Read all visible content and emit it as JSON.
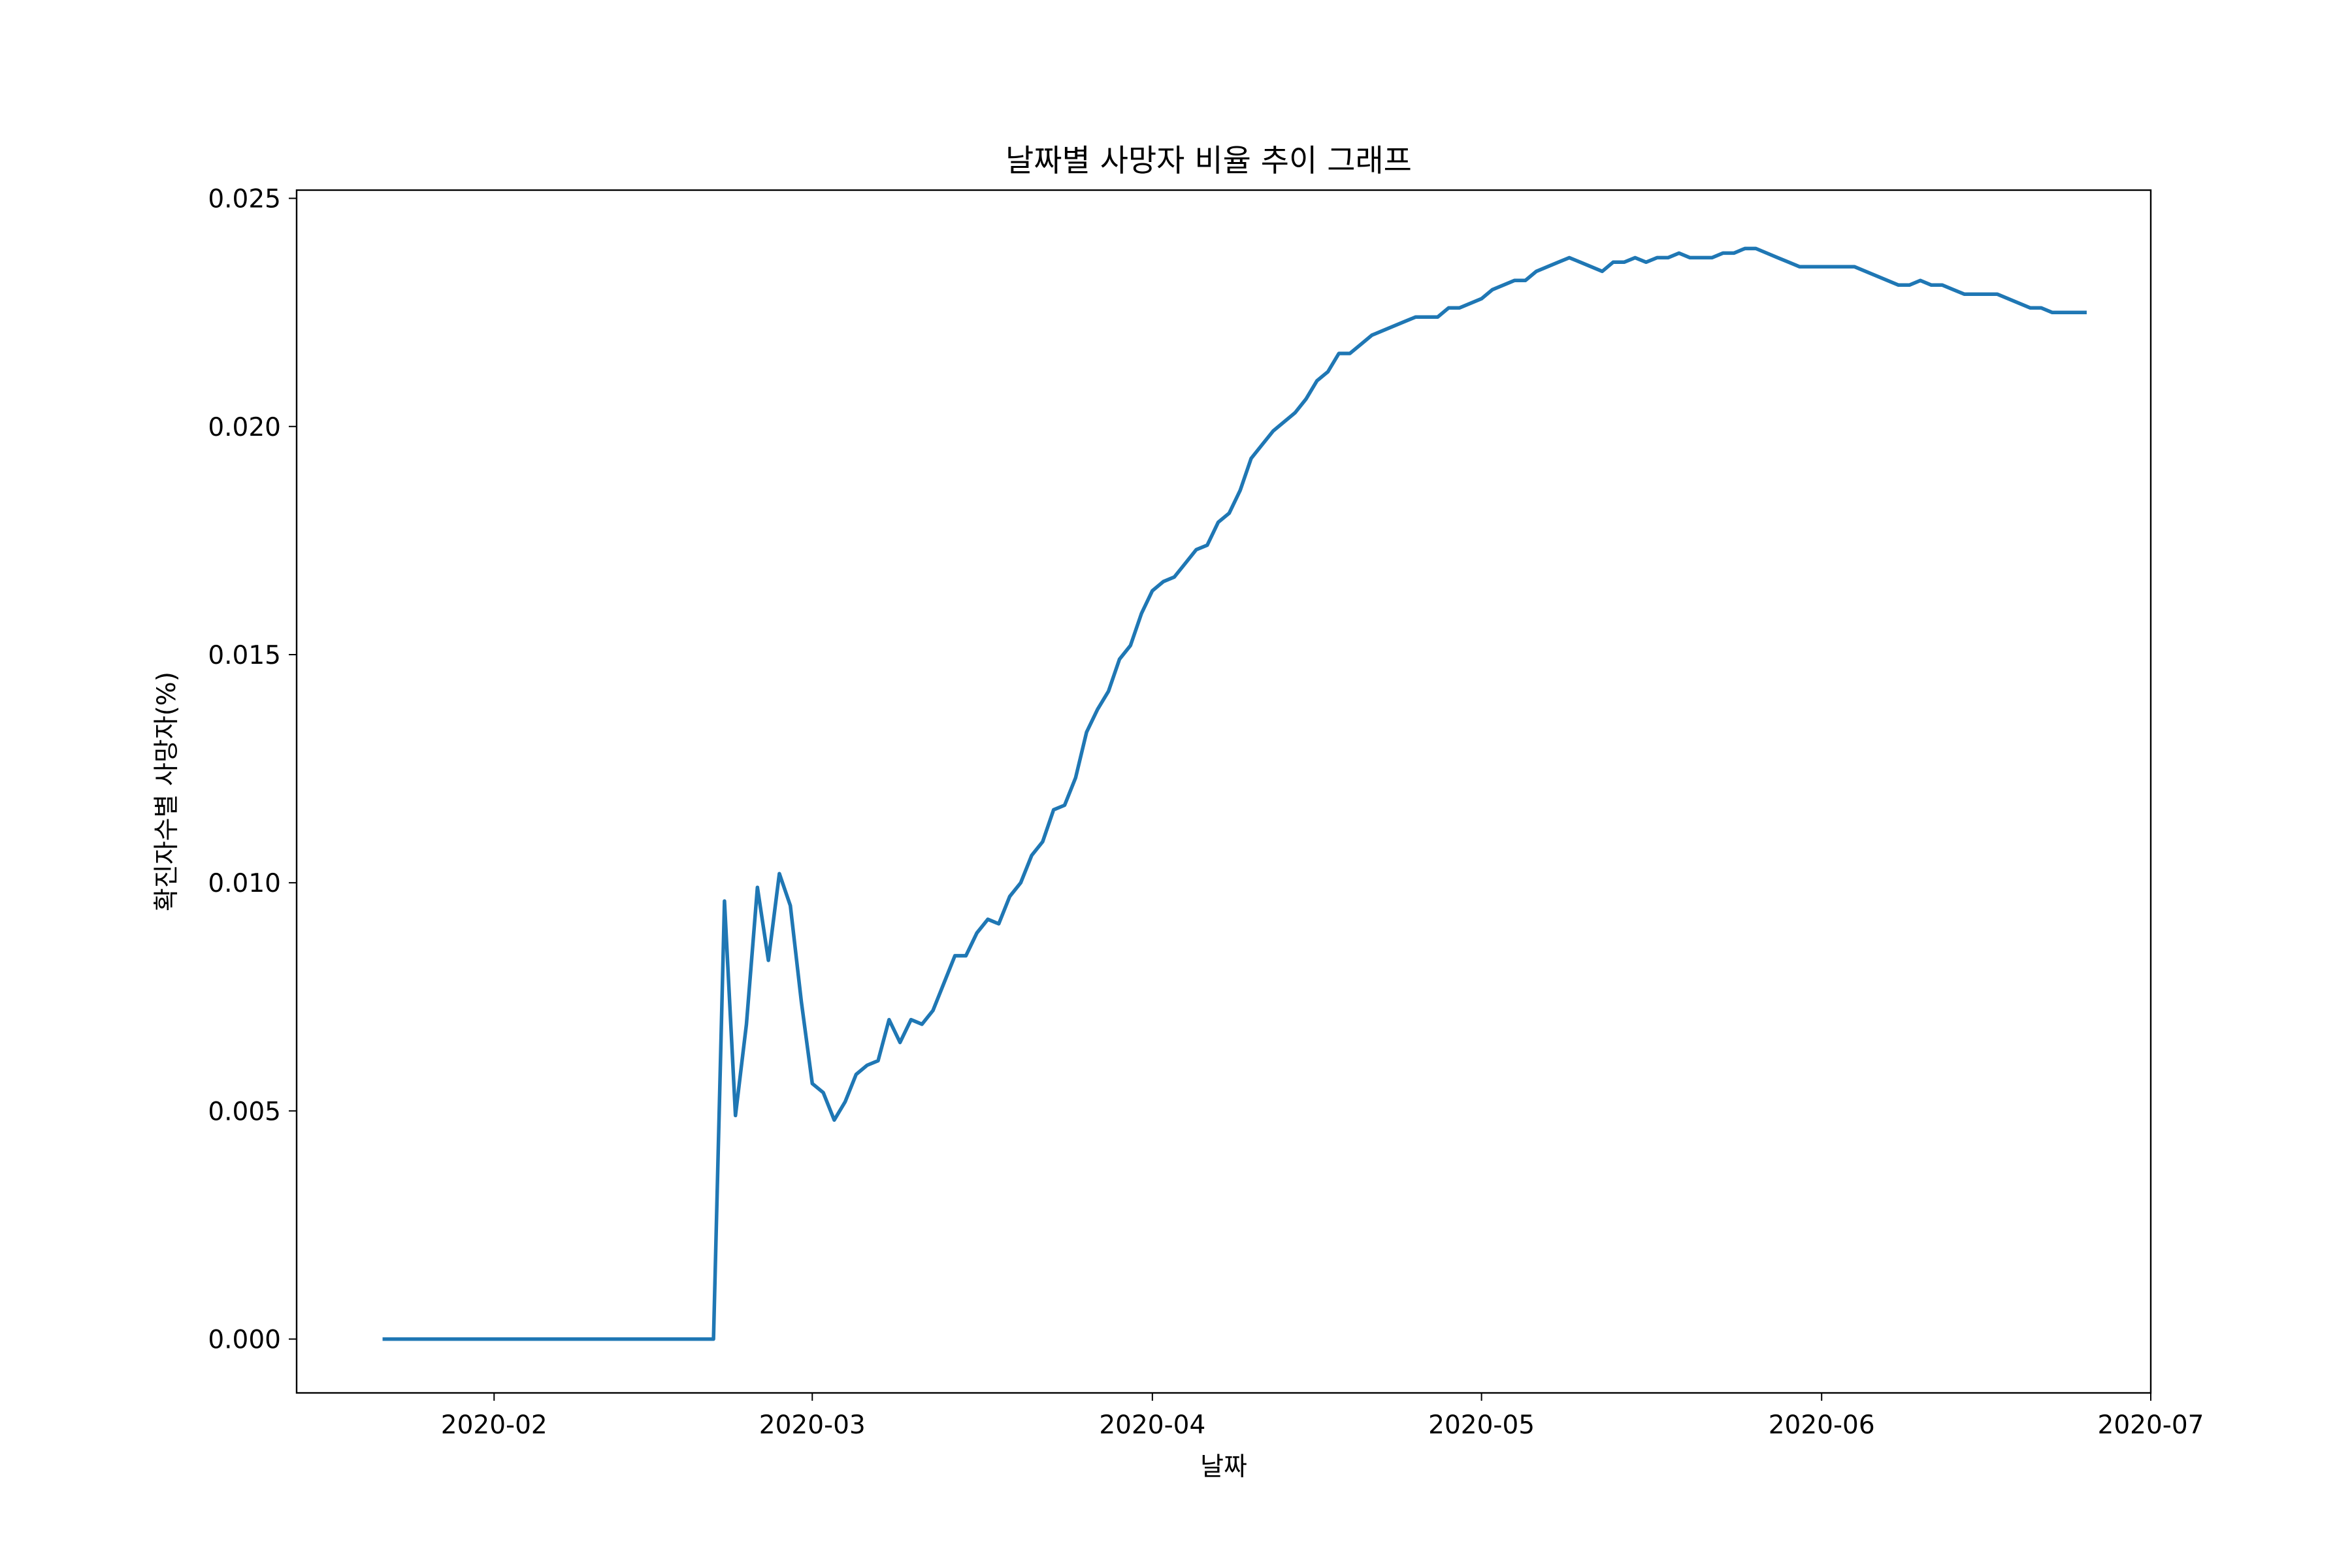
{
  "chart_data": {
    "type": "line",
    "title": "날짜별 사망자 비율 추이 그래프",
    "xlabel": "날짜",
    "ylabel": "확진자수별 사망자(%)",
    "x_ticks": [
      "2020-02",
      "2020-03",
      "2020-04",
      "2020-05",
      "2020-06",
      "2020-07"
    ],
    "y_ticks": [
      "0.000",
      "0.005",
      "0.010",
      "0.015",
      "0.020",
      "0.025"
    ],
    "xlim": [
      "2020-01-14",
      "2020-07-01"
    ],
    "ylim": [
      -0.00118,
      0.02518
    ],
    "grid": false,
    "line_color": "#1f77b4",
    "series": [
      {
        "x": [
          "2020-01-22",
          "2020-02-21",
          "2020-02-22",
          "2020-02-23",
          "2020-02-24",
          "2020-02-25",
          "2020-02-26",
          "2020-02-27",
          "2020-02-28",
          "2020-02-29",
          "2020-03-01",
          "2020-03-02",
          "2020-03-03",
          "2020-03-04",
          "2020-03-05",
          "2020-03-06",
          "2020-03-07",
          "2020-03-08",
          "2020-03-09",
          "2020-03-10",
          "2020-03-11",
          "2020-03-12",
          "2020-03-13",
          "2020-03-14",
          "2020-03-15",
          "2020-03-16",
          "2020-03-17",
          "2020-03-18",
          "2020-03-19",
          "2020-03-20",
          "2020-03-21",
          "2020-03-22",
          "2020-03-23",
          "2020-03-24",
          "2020-03-25",
          "2020-03-26",
          "2020-03-27",
          "2020-03-28",
          "2020-03-29",
          "2020-03-30",
          "2020-03-31",
          "2020-04-01",
          "2020-04-02",
          "2020-04-03",
          "2020-04-04",
          "2020-04-05",
          "2020-04-06",
          "2020-04-07",
          "2020-04-08",
          "2020-04-09",
          "2020-04-10",
          "2020-04-11",
          "2020-04-12",
          "2020-04-13",
          "2020-04-14",
          "2020-04-15",
          "2020-04-16",
          "2020-04-17",
          "2020-04-18",
          "2020-04-19",
          "2020-04-20",
          "2020-04-21",
          "2020-04-22",
          "2020-04-23",
          "2020-04-24",
          "2020-04-25",
          "2020-04-26",
          "2020-04-27",
          "2020-04-28",
          "2020-04-29",
          "2020-04-30",
          "2020-05-01",
          "2020-05-02",
          "2020-05-03",
          "2020-05-04",
          "2020-05-05",
          "2020-05-06",
          "2020-05-07",
          "2020-05-08",
          "2020-05-09",
          "2020-05-10",
          "2020-05-11",
          "2020-05-12",
          "2020-05-13",
          "2020-05-14",
          "2020-05-15",
          "2020-05-16",
          "2020-05-17",
          "2020-05-18",
          "2020-05-19",
          "2020-05-20",
          "2020-05-21",
          "2020-05-22",
          "2020-05-23",
          "2020-05-24",
          "2020-05-25",
          "2020-05-26",
          "2020-05-27",
          "2020-05-28",
          "2020-05-29",
          "2020-05-30",
          "2020-05-31",
          "2020-06-01",
          "2020-06-02",
          "2020-06-03",
          "2020-06-04",
          "2020-06-05",
          "2020-06-06",
          "2020-06-07",
          "2020-06-08",
          "2020-06-09",
          "2020-06-10",
          "2020-06-11",
          "2020-06-12",
          "2020-06-13",
          "2020-06-14",
          "2020-06-15",
          "2020-06-16",
          "2020-06-17",
          "2020-06-18",
          "2020-06-19",
          "2020-06-20",
          "2020-06-21",
          "2020-06-22",
          "2020-06-23",
          "2020-06-24",
          "2020-06-25"
        ],
        "y": [
          0,
          0,
          0.0096,
          0.0049,
          0.0069,
          0.0099,
          0.0083,
          0.0102,
          0.0095,
          0.0074,
          0.0056,
          0.0054,
          0.0048,
          0.0052,
          0.0058,
          0.006,
          0.0061,
          0.007,
          0.0065,
          0.007,
          0.0069,
          0.0072,
          0.0078,
          0.0084,
          0.0084,
          0.0089,
          0.0092,
          0.0091,
          0.0097,
          0.01,
          0.0106,
          0.0109,
          0.0116,
          0.0117,
          0.0123,
          0.0133,
          0.0138,
          0.0142,
          0.0149,
          0.0152,
          0.0159,
          0.0164,
          0.0166,
          0.0167,
          0.017,
          0.0173,
          0.0174,
          0.0179,
          0.0181,
          0.0186,
          0.0193,
          0.0196,
          0.0199,
          0.0201,
          0.0203,
          0.0206,
          0.021,
          0.0212,
          0.0216,
          0.0216,
          0.0218,
          0.022,
          0.0221,
          0.0222,
          0.0223,
          0.0224,
          0.0224,
          0.0224,
          0.0226,
          0.0226,
          0.0227,
          0.0228,
          0.023,
          0.0231,
          0.0232,
          0.0232,
          0.0234,
          0.0235,
          0.0236,
          0.0237,
          0.0236,
          0.0235,
          0.0234,
          0.0236,
          0.0236,
          0.0237,
          0.0236,
          0.0237,
          0.0237,
          0.0238,
          0.0237,
          0.0237,
          0.0237,
          0.0238,
          0.0238,
          0.0239,
          0.0239,
          0.0238,
          0.0237,
          0.0236,
          0.0235,
          0.0235,
          0.0235,
          0.0235,
          0.0235,
          0.0235,
          0.0234,
          0.0233,
          0.0232,
          0.0231,
          0.0231,
          0.0232,
          0.0231,
          0.0231,
          0.023,
          0.0229,
          0.0229,
          0.0229,
          0.0229,
          0.0228,
          0.0227,
          0.0226,
          0.0226,
          0.0225,
          0.0225,
          0.0225,
          0.0225
        ]
      }
    ]
  }
}
